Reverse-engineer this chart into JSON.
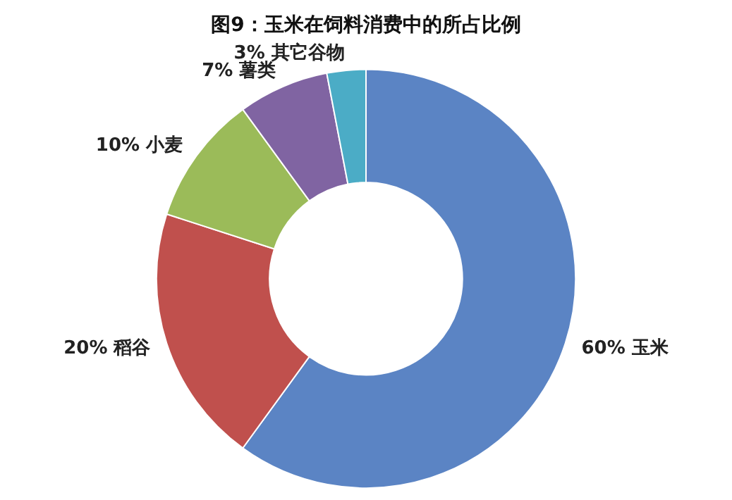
{
  "chart_data": {
    "type": "donut",
    "title": "图9：玉米在饲料消费中的所占比例",
    "categories": [
      "玉米",
      "稻谷",
      "小麦",
      "薯类",
      "其它谷物"
    ],
    "values": [
      60,
      20,
      10,
      7,
      3
    ],
    "value_labels": [
      "60%",
      "20%",
      "10%",
      "7%",
      "3%"
    ],
    "colors": [
      "#5b84c4",
      "#c0504d",
      "#9bbb59",
      "#8064a2",
      "#4bacc6"
    ]
  }
}
